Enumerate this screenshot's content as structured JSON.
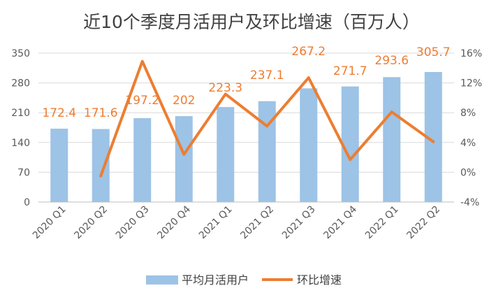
{
  "chart_data": {
    "type": "bar+line",
    "title": "近10个季度月活用户及环比增速（百万人）",
    "categories": [
      "2020 Q1",
      "2020 Q2",
      "2020 Q3",
      "2020 Q4",
      "2021 Q1",
      "2021 Q2",
      "2021 Q3",
      "2021 Q4",
      "2022 Q1",
      "2022 Q2"
    ],
    "series": [
      {
        "name": "平均月活用户",
        "type": "bar",
        "axis": "left",
        "color": "#9DC3E6",
        "values": [
          172.4,
          171.6,
          197.2,
          202,
          223.3,
          237.1,
          267.2,
          271.7,
          293.6,
          305.7
        ],
        "labels": [
          "172.4",
          "171.6",
          "197.2",
          "202",
          "223.3",
          "237.1",
          "267.2",
          "271.7",
          "293.6",
          "305.7"
        ]
      },
      {
        "name": "环比增速",
        "type": "line",
        "axis": "right",
        "color": "#ED7D31",
        "values": [
          null,
          -0.5,
          14.9,
          2.4,
          10.5,
          6.2,
          12.7,
          1.7,
          8.1,
          4.1
        ]
      }
    ],
    "y_left": {
      "min": 0,
      "max": 350,
      "ticks": [
        0,
        70,
        140,
        210,
        280,
        350
      ],
      "tick_labels": [
        "0",
        "70",
        "140",
        "210",
        "280",
        "350"
      ]
    },
    "y_right": {
      "min": -4,
      "max": 16,
      "ticks": [
        -4,
        0,
        4,
        8,
        12,
        16
      ],
      "tick_labels": [
        "-4%",
        "0%",
        "4%",
        "8%",
        "12%",
        "16%"
      ]
    },
    "legend": {
      "position": "bottom",
      "items": [
        "平均月活用户",
        "环比增速"
      ]
    },
    "grid": true
  }
}
